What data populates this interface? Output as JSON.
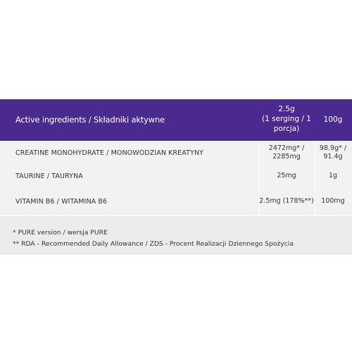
{
  "table": {
    "header": {
      "name": "Active ingredients / Składniki aktywne",
      "serving": "2.5g\n(1 serging / 1 porcja)",
      "per100": "100g"
    },
    "rows": [
      {
        "name": "CREATINE MONOHYDRATE / MONOWODZIAN KREATYNY",
        "serving": "2472mg* / 2285mg",
        "per100": "98.9g* / 91.4g"
      },
      {
        "name": "TAURINE / TAURYNA",
        "serving": "25mg",
        "per100": "1g"
      },
      {
        "name": "VITAMIN B6 / WITAMINA B6",
        "serving": "2.5mg (178%**)",
        "per100": "100mg"
      }
    ]
  },
  "footnotes": [
    "* PURE version / wersja PURE",
    "** RDA - Recommended Daily Allowance / ZDS - Procent Realizacji Dziennego Spożycia"
  ],
  "colors": {
    "header_bg": "#4a2a8f",
    "panel_bg": "#ececec"
  }
}
